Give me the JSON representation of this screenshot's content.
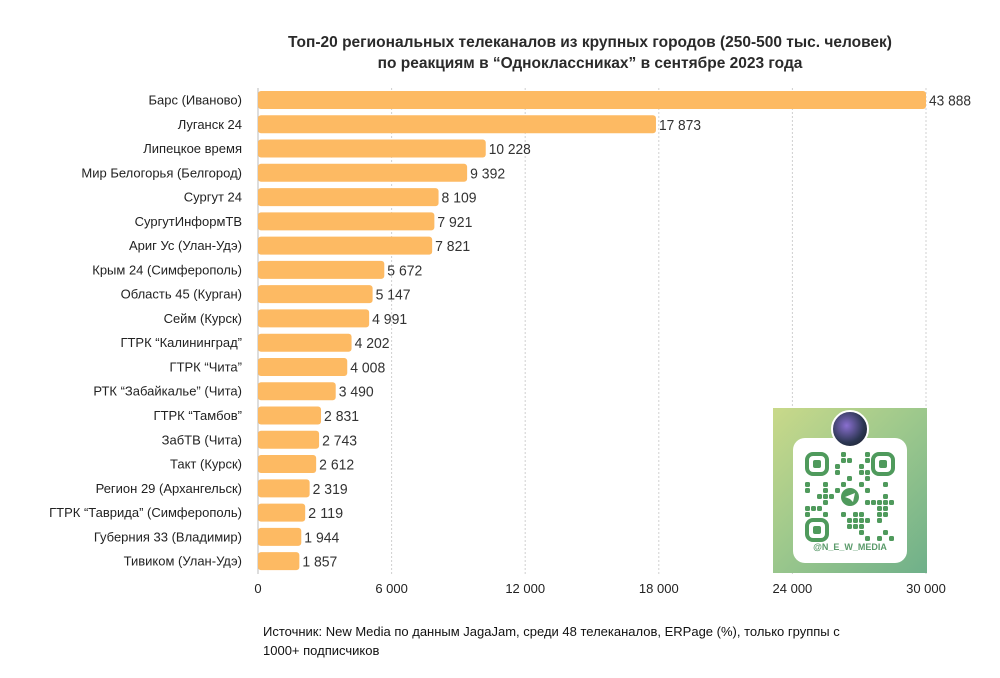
{
  "chart_data": {
    "type": "bar",
    "orientation": "horizontal",
    "title": "Топ-20 региональных телеканалов из крупных городов (250-500 тыс. человек) по реакциям в “Одноклассниках” в сентябре 2023 года",
    "title_lines": [
      "Топ-20 региональных телеканалов из крупных городов (250-500 тыс. человек)",
      "по реакциям в “Одноклассниках” в сентябре 2023 года"
    ],
    "categories": [
      "Барс (Иваново)",
      "Луганск 24",
      "Липецкое время",
      "Мир Белогорья (Белгород)",
      "Сургут 24",
      "СургутИнформТВ",
      "Ариг Ус (Улан-Удэ)",
      "Крым 24 (Симферополь)",
      "Область 45 (Курган)",
      "Сейм (Курск)",
      "ГТРК “Калининград”",
      "ГТРК “Чита”",
      "РТК “Забайкалье” (Чита)",
      "ГТРК “Тамбов”",
      "ЗабТВ (Чита)",
      "Такт (Курск)",
      "Регион 29 (Архангельск)",
      "ГТРК “Таврида” (Симферополь)",
      "Губерния 33 (Владимир)",
      "Тивиком (Улан-Удэ)"
    ],
    "values": [
      43888,
      17873,
      10228,
      9392,
      8109,
      7921,
      7821,
      5672,
      5147,
      4991,
      4202,
      4008,
      3490,
      2831,
      2743,
      2612,
      2319,
      2119,
      1944,
      1857
    ],
    "data_labels": [
      "43 888",
      "17 873",
      "10 228",
      "9 392",
      "8 109",
      "7 921",
      "7 821",
      "5 672",
      "5 147",
      "4 991",
      "4 202",
      "4 008",
      "3 490",
      "2 831",
      "2 743",
      "2 612",
      "2 319",
      "2 119",
      "1 944",
      "1 857"
    ],
    "xlim": [
      0,
      30000
    ],
    "x_ticks": [
      0,
      6000,
      12000,
      18000,
      24000,
      30000
    ],
    "x_tick_labels": [
      "0",
      "6 000",
      "12 000",
      "18 000",
      "24 000",
      "30 000"
    ],
    "xlabel": "",
    "ylabel": "",
    "grid": "vertical dotted",
    "bar_color": "#FDBA63",
    "note": "Барс (Иваново) bar truncated at axis maximum"
  },
  "source": "Источник: New Media по данным JagaJam, среди 48 телеканалов, ERPage (%), только группы с 1000+ подписчиков",
  "qr": {
    "handle": "@N_E_W_MEDIA",
    "icon": "telegram-qr-code"
  }
}
